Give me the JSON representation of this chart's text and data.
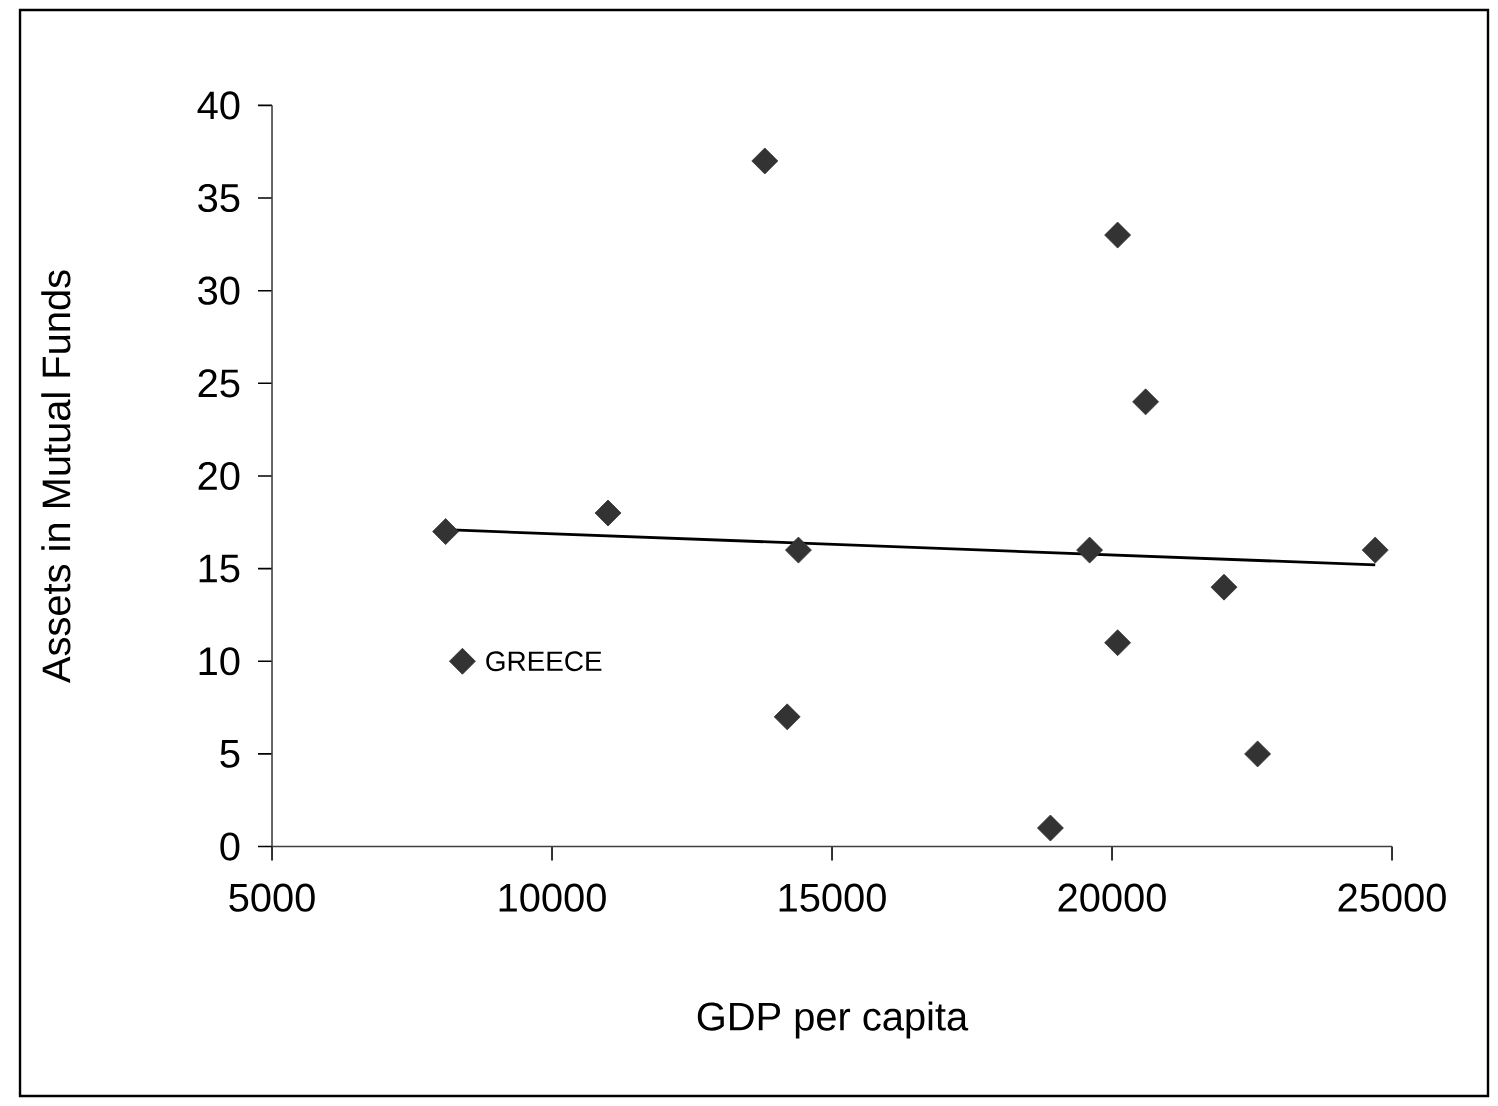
{
  "chart_data": {
    "type": "scatter",
    "xlabel": "GDP per capita",
    "ylabel": "Assets in Mutual Funds",
    "xlim": [
      5000,
      25000
    ],
    "xticks": [
      5000,
      10000,
      15000,
      20000,
      25000
    ],
    "ylim": [
      0,
      40
    ],
    "yticks": [
      0,
      5,
      10,
      15,
      20,
      25,
      30,
      35,
      40
    ],
    "grid": false,
    "marker": "diamond",
    "series": [
      {
        "color": "#333333",
        "x": [
          8100,
          8400,
          11000,
          13800,
          14200,
          14400,
          18900,
          19600,
          20100,
          20100,
          20600,
          22000,
          22600,
          24700
        ],
        "values": [
          17,
          10,
          18,
          37,
          7,
          16,
          1,
          16,
          33,
          11,
          24,
          14,
          5,
          16
        ]
      },
      {
        "type": "line",
        "color": "#000000",
        "marker": "none",
        "line_style": "solid",
        "x": [
          8100,
          24700
        ],
        "values": [
          17.1,
          15.2
        ]
      }
    ],
    "annotations": [
      {
        "text": "GREECE",
        "x": 8400,
        "y": 10
      }
    ]
  }
}
